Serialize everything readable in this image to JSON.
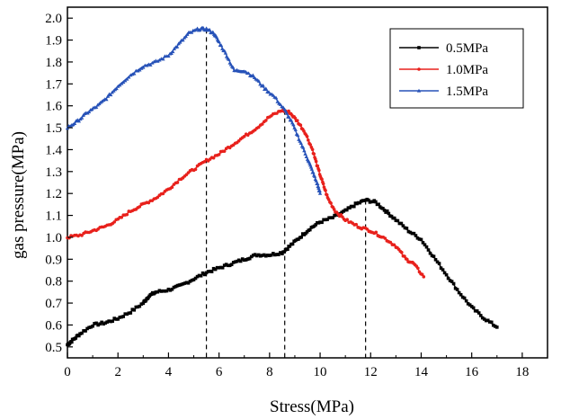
{
  "chart_data": {
    "type": "line",
    "title": "",
    "xlabel": "Stress(MPa)",
    "ylabel": "gas pressure(MPa)",
    "xlim": [
      0,
      19
    ],
    "ylim": [
      0.45,
      2.05
    ],
    "xticks": [
      "0",
      "2",
      "4",
      "6",
      "8",
      "10",
      "12",
      "14",
      "16",
      "18"
    ],
    "yticks": [
      "0.5",
      "0.6",
      "0.7",
      "0.8",
      "0.9",
      "1.0",
      "1.1",
      "1.2",
      "1.3",
      "1.4",
      "1.5",
      "1.6",
      "1.7",
      "1.8",
      "1.9",
      "2.0"
    ],
    "grid": false,
    "legend_position": "top-right",
    "series": [
      {
        "name": "0.5MPa",
        "color": "#000000",
        "marker": "square",
        "points": [
          [
            0,
            0.51
          ],
          [
            0.2,
            0.53
          ],
          [
            0.5,
            0.56
          ],
          [
            1,
            0.6
          ],
          [
            1.5,
            0.61
          ],
          [
            2,
            0.63
          ],
          [
            2.5,
            0.66
          ],
          [
            3,
            0.7
          ],
          [
            3.2,
            0.73
          ],
          [
            3.5,
            0.75
          ],
          [
            4,
            0.76
          ],
          [
            4.5,
            0.78
          ],
          [
            5,
            0.81
          ],
          [
            5.5,
            0.84
          ],
          [
            6,
            0.86
          ],
          [
            6.5,
            0.88
          ],
          [
            7,
            0.9
          ],
          [
            7.5,
            0.92
          ],
          [
            8,
            0.92
          ],
          [
            8.5,
            0.93
          ],
          [
            8.8,
            0.96
          ],
          [
            9.2,
            1.0
          ],
          [
            9.6,
            1.04
          ],
          [
            10,
            1.07
          ],
          [
            10.5,
            1.09
          ],
          [
            11,
            1.12
          ],
          [
            11.4,
            1.15
          ],
          [
            11.8,
            1.17
          ],
          [
            12.2,
            1.16
          ],
          [
            12.6,
            1.12
          ],
          [
            13,
            1.08
          ],
          [
            13.5,
            1.03
          ],
          [
            14,
            0.99
          ],
          [
            14.5,
            0.91
          ],
          [
            15,
            0.83
          ],
          [
            15.5,
            0.75
          ],
          [
            16,
            0.68
          ],
          [
            16.5,
            0.63
          ],
          [
            17,
            0.59
          ]
        ]
      },
      {
        "name": "1.0MPa",
        "color": "#e8211c",
        "marker": "circle",
        "points": [
          [
            0,
            1.0
          ],
          [
            0.5,
            1.01
          ],
          [
            1,
            1.03
          ],
          [
            1.5,
            1.05
          ],
          [
            2,
            1.08
          ],
          [
            2.5,
            1.12
          ],
          [
            3,
            1.15
          ],
          [
            3.5,
            1.18
          ],
          [
            4,
            1.22
          ],
          [
            4.5,
            1.27
          ],
          [
            5,
            1.31
          ],
          [
            5.5,
            1.35
          ],
          [
            6,
            1.38
          ],
          [
            6.5,
            1.42
          ],
          [
            7,
            1.46
          ],
          [
            7.5,
            1.5
          ],
          [
            8,
            1.55
          ],
          [
            8.5,
            1.58
          ],
          [
            8.8,
            1.57
          ],
          [
            9.1,
            1.53
          ],
          [
            9.4,
            1.48
          ],
          [
            9.7,
            1.4
          ],
          [
            9.9,
            1.32
          ],
          [
            10.1,
            1.25
          ],
          [
            10.3,
            1.18
          ],
          [
            10.6,
            1.12
          ],
          [
            11,
            1.08
          ],
          [
            11.5,
            1.05
          ],
          [
            12,
            1.03
          ],
          [
            12.5,
            1.0
          ],
          [
            13,
            0.96
          ],
          [
            13.4,
            0.9
          ],
          [
            13.7,
            0.88
          ],
          [
            14.1,
            0.82
          ]
        ]
      },
      {
        "name": "1.5MPa",
        "color": "#2752b8",
        "marker": "triangle",
        "points": [
          [
            0,
            1.5
          ],
          [
            0.4,
            1.53
          ],
          [
            0.8,
            1.57
          ],
          [
            1.2,
            1.6
          ],
          [
            1.6,
            1.64
          ],
          [
            2,
            1.69
          ],
          [
            2.5,
            1.74
          ],
          [
            3,
            1.78
          ],
          [
            3.5,
            1.8
          ],
          [
            4,
            1.83
          ],
          [
            4.4,
            1.88
          ],
          [
            4.8,
            1.93
          ],
          [
            5.2,
            1.95
          ],
          [
            5.5,
            1.95
          ],
          [
            5.8,
            1.93
          ],
          [
            6,
            1.89
          ],
          [
            6.3,
            1.83
          ],
          [
            6.6,
            1.76
          ],
          [
            7,
            1.76
          ],
          [
            7.4,
            1.73
          ],
          [
            7.8,
            1.68
          ],
          [
            8.2,
            1.64
          ],
          [
            8.6,
            1.58
          ],
          [
            8.9,
            1.52
          ],
          [
            9.2,
            1.44
          ],
          [
            9.5,
            1.36
          ],
          [
            9.7,
            1.3
          ],
          [
            9.9,
            1.24
          ],
          [
            10,
            1.2
          ]
        ]
      }
    ],
    "reference_lines_x": [
      5.5,
      8.6,
      11.8
    ]
  }
}
